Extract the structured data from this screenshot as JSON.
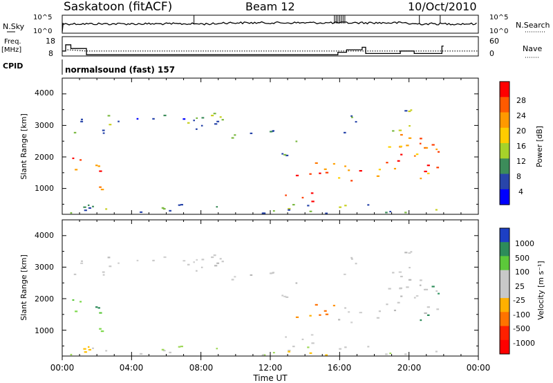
{
  "header": {
    "title": "Saskatoon (fitACF)",
    "beam": "Beam 12",
    "date": "10/Oct/2010"
  },
  "noise_panel": {
    "left_label": "N.Sky",
    "left_ticks": [
      "10^5",
      "10^0"
    ],
    "right_label": "N.Search",
    "right_ticks": [
      "10^5",
      "10^0"
    ]
  },
  "freq_panel": {
    "left_label_line1": "Freq.",
    "left_label_line2": "[MHz]",
    "left_ticks": [
      "18",
      "8"
    ],
    "right_label": "Nave",
    "right_ticks": [
      "60",
      "0"
    ]
  },
  "cpid": {
    "label": "CPID",
    "value": "normalsound (fast) 157"
  },
  "power_panel": {
    "ylabel": "Slant Range [km]",
    "yticks": [
      "4000",
      "3000",
      "2000",
      "1000"
    ],
    "colorbar_label": "Power [dB]",
    "colorbar_ticks": [
      "28",
      "24",
      "20",
      "16",
      "12",
      "8",
      "4"
    ],
    "colorbar_colors": [
      "#ff0000",
      "#ff5a00",
      "#ff9900",
      "#ffcc00",
      "#a6d22a",
      "#3c8c5a",
      "#2845aa",
      "#0000ff"
    ]
  },
  "velocity_panel": {
    "ylabel": "Slant Range [km]",
    "yticks": [
      "4000",
      "3000",
      "2000",
      "1000"
    ],
    "colorbar_label": "Velocity [m s⁻¹]",
    "colorbar_ticks": [
      "1000",
      "500",
      "100",
      "25",
      "-25",
      "-100",
      "-500",
      "-1000"
    ],
    "colorbar_colors": [
      "#1d3fc4",
      "#2d8c5a",
      "#5cc83a",
      "#c8c8c8",
      "#c8c8c8",
      "#ffb000",
      "#ff7300",
      "#ff2000",
      "#ff0000"
    ]
  },
  "xaxis": {
    "label": "Time UT",
    "ticks": [
      "00:00",
      "04:00",
      "08:00",
      "12:00",
      "16:00",
      "20:00",
      "00:00"
    ]
  },
  "chart_data": {
    "type": "heatmap",
    "x_range_hours": [
      0,
      24
    ],
    "y_range_km": [
      180,
      4500
    ],
    "power_scale_dB": [
      0,
      32
    ],
    "velocity_scale_ms": [
      -1200,
      1200
    ],
    "data_end_hour": 22
  }
}
